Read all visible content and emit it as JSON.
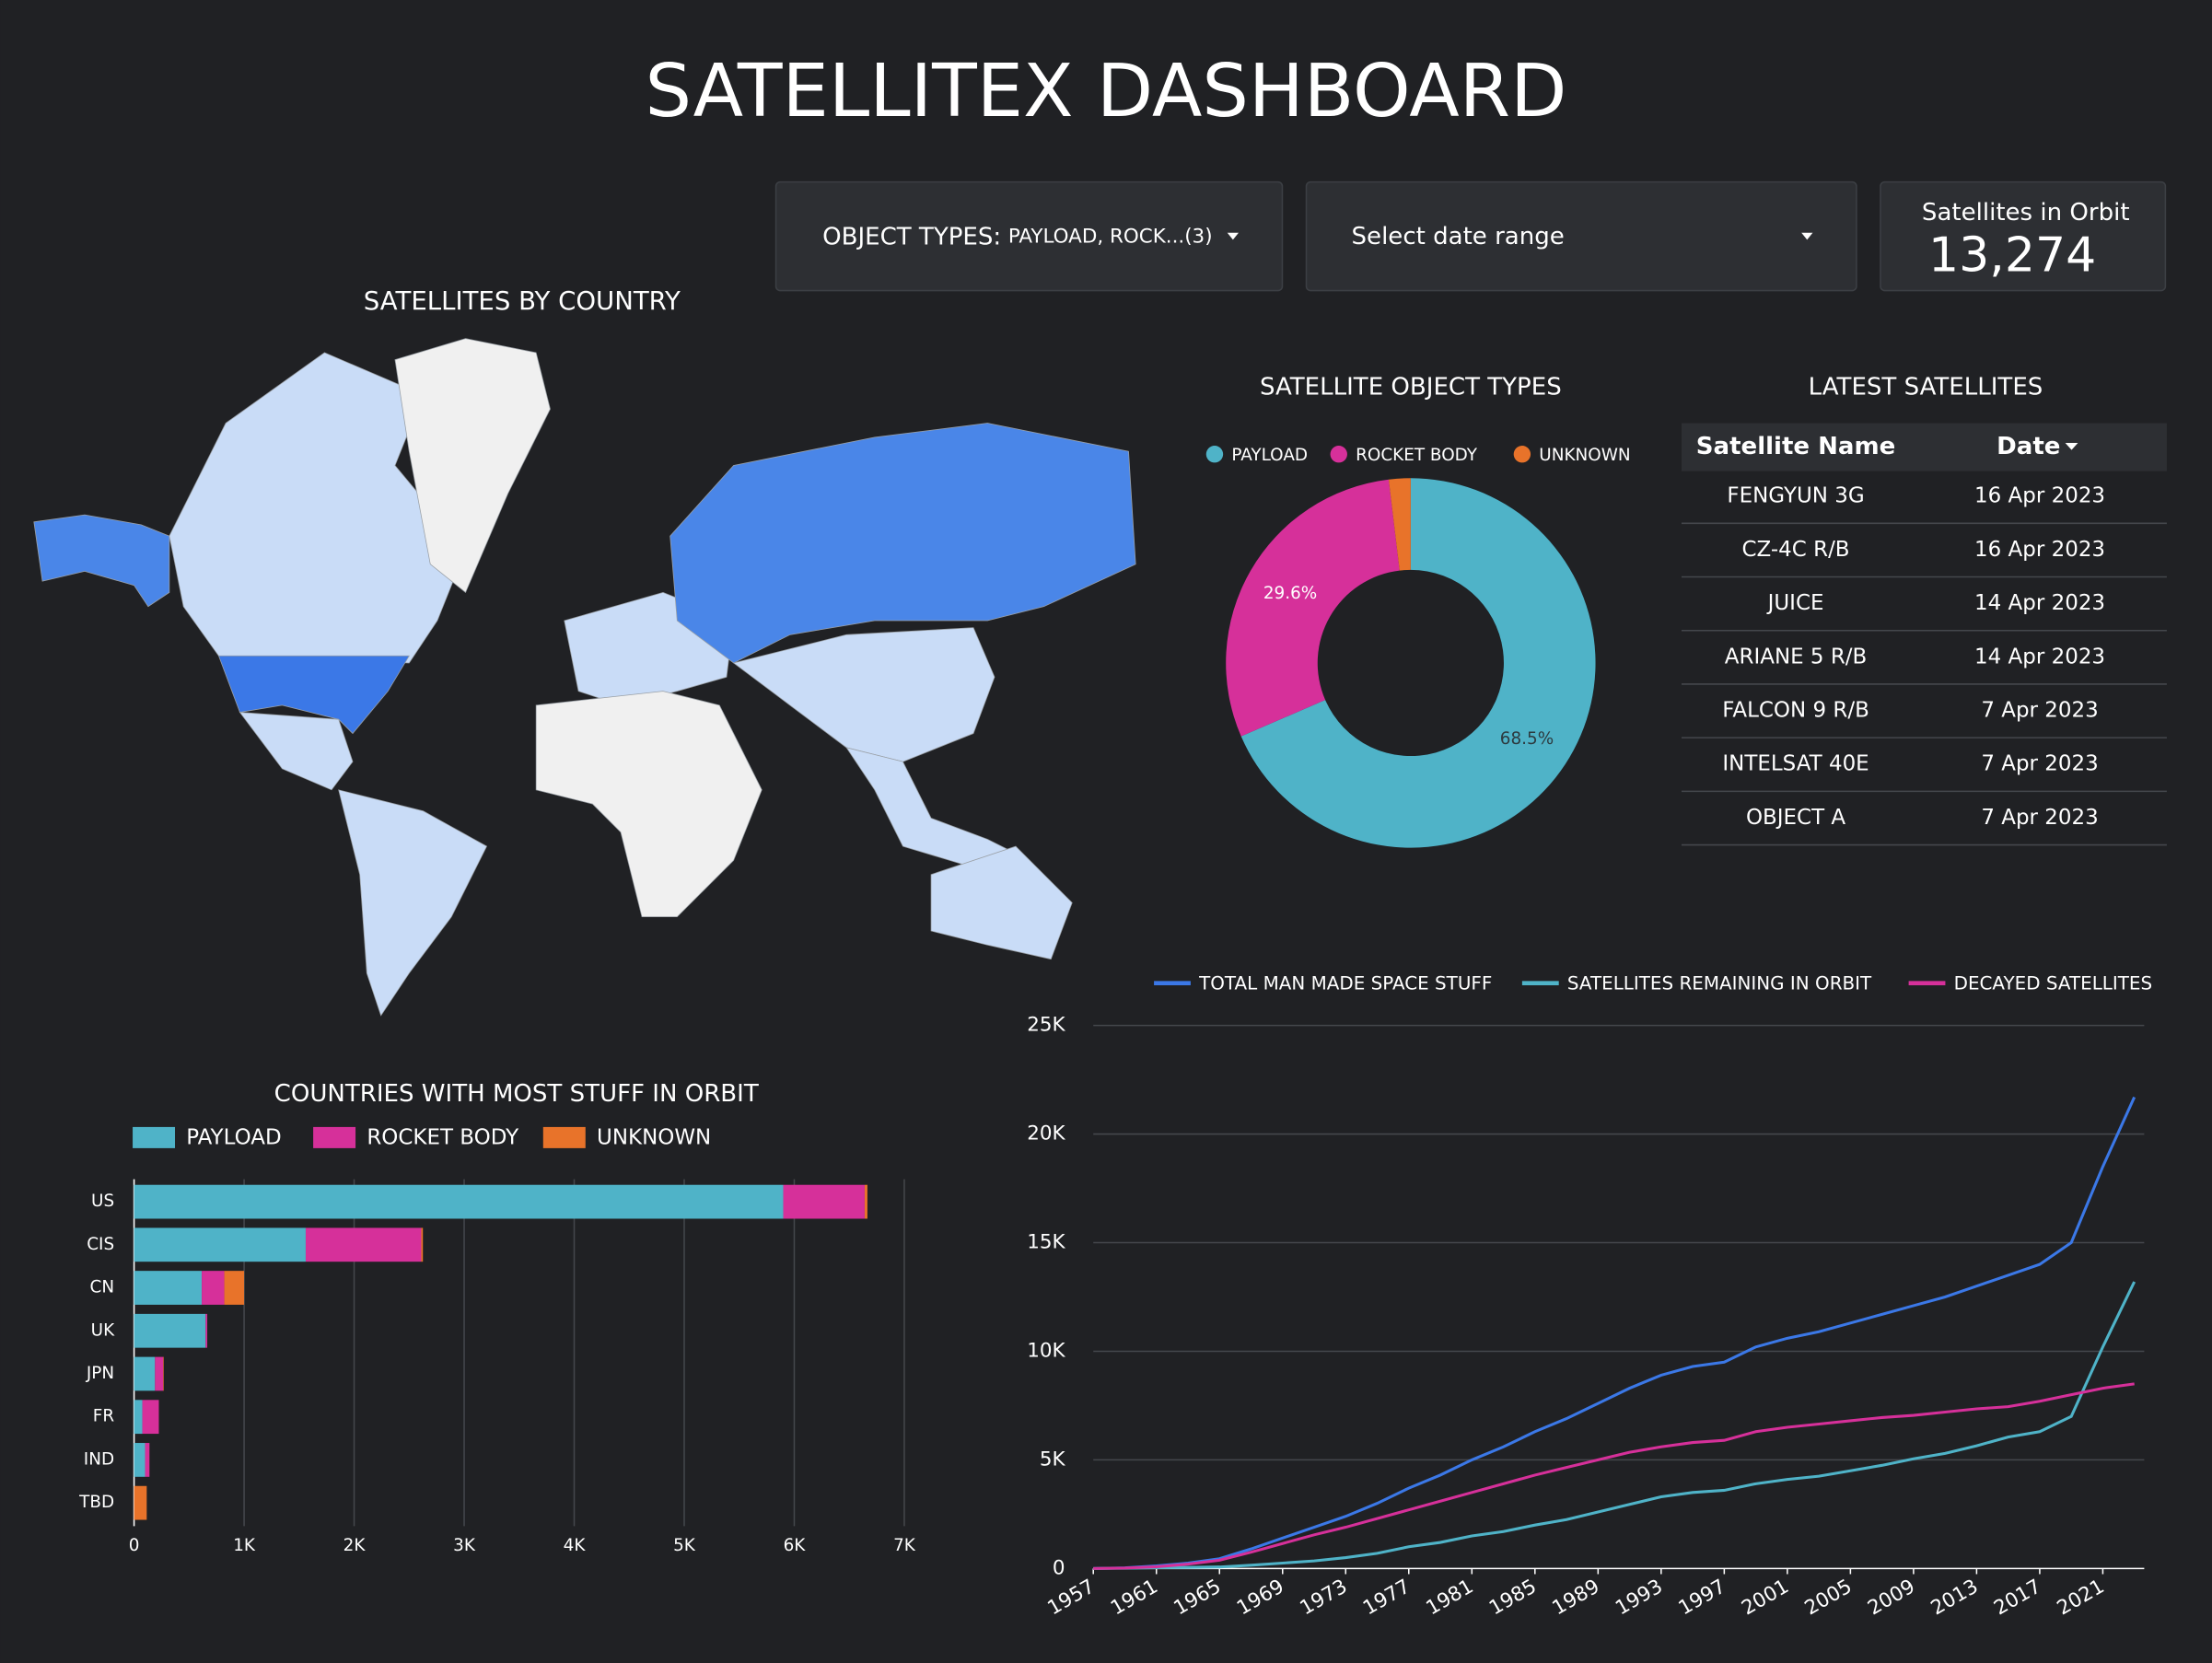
{
  "header": {
    "title": "SATELLITEX DASHBOARD"
  },
  "filters": {
    "object_types": {
      "label": "OBJECT TYPES:",
      "value": "PAYLOAD, ROCK...(3)"
    },
    "date_range": "Select date range"
  },
  "kpi": {
    "label": "Satellites in Orbit",
    "value": "13,274"
  },
  "map": {
    "title": "SATELLITES BY COUNTRY"
  },
  "table": {
    "title": "LATEST SATELLITES",
    "columns": [
      "Satellite Name",
      "Date"
    ],
    "rows": [
      [
        "FENGYUN 3G",
        "16 Apr 2023"
      ],
      [
        "CZ-4C R/B",
        "16 Apr 2023"
      ],
      [
        "JUICE",
        "14 Apr 2023"
      ],
      [
        "ARIANE 5 R/B",
        "14 Apr 2023"
      ],
      [
        "FALCON 9 R/B",
        "7 Apr 2023"
      ],
      [
        "INTELSAT 40E",
        "7 Apr 2023"
      ],
      [
        "OBJECT A",
        "7 Apr 2023"
      ]
    ]
  },
  "chart_data": [
    {
      "type": "pie",
      "title": "SATELLITE OBJECT TYPES",
      "donut": true,
      "categories": [
        "PAYLOAD",
        "ROCKET BODY",
        "UNKNOWN"
      ],
      "values": [
        68.5,
        29.6,
        1.9
      ],
      "value_labels": [
        "68.5%",
        "29.6%",
        null
      ],
      "colors": [
        "#4fb3c8",
        "#d6309a",
        "#e8732a"
      ]
    },
    {
      "type": "hbar",
      "title": "COUNTRIES WITH MOST STUFF IN ORBIT",
      "stacked": true,
      "grid": true,
      "categories": [
        "US",
        "CIS",
        "CN",
        "UK",
        "JPN",
        "FR",
        "IND",
        "TBD"
      ],
      "series": [
        {
          "name": "PAYLOAD",
          "color": "#4fb3c8",
          "values": [
            5900,
            1560,
            615,
            650,
            190,
            75,
            100,
            0
          ]
        },
        {
          "name": "ROCKET BODY",
          "color": "#d6309a",
          "values": [
            740,
            1050,
            205,
            15,
            75,
            150,
            40,
            0
          ]
        },
        {
          "name": "UNKNOWN",
          "color": "#e8732a",
          "values": [
            25,
            15,
            180,
            0,
            5,
            0,
            0,
            115
          ]
        }
      ],
      "xlim": [
        0,
        7000
      ],
      "xticks": [
        0,
        {
          "value": 1000,
          "label": "1K"
        },
        {
          "value": 2000,
          "label": "2K"
        },
        {
          "value": 3000,
          "label": "3K"
        },
        {
          "value": 4000,
          "label": "4K"
        },
        {
          "value": 5000,
          "label": "5K"
        },
        {
          "value": 6000,
          "label": "6K"
        },
        {
          "value": 7000,
          "label": "7K"
        }
      ]
    },
    {
      "type": "line",
      "grid": true,
      "x": [
        1957,
        1959,
        1961,
        1963,
        1965,
        1967,
        1969,
        1971,
        1973,
        1975,
        1977,
        1979,
        1981,
        1983,
        1985,
        1987,
        1989,
        1991,
        1993,
        1995,
        1997,
        1999,
        2001,
        2003,
        2005,
        2007,
        2009,
        2011,
        2013,
        2015,
        2017,
        2019,
        2021,
        2023
      ],
      "series": [
        {
          "name": "TOTAL MAN MADE SPACE STUFF",
          "color": "#3b78e7",
          "values": [
            0,
            30,
            120,
            250,
            450,
            900,
            1400,
            1900,
            2400,
            3000,
            3700,
            4300,
            5000,
            5600,
            6300,
            6900,
            7600,
            8300,
            8900,
            9300,
            9500,
            10200,
            10600,
            10900,
            11300,
            11700,
            12100,
            12500,
            13000,
            13500,
            14000,
            15000,
            18500,
            21700
          ]
        },
        {
          "name": "SATELLITES REMAINING IN ORBIT",
          "color": "#4fb3c8",
          "values": [
            0,
            10,
            40,
            50,
            70,
            150,
            250,
            350,
            500,
            700,
            1000,
            1200,
            1500,
            1700,
            2000,
            2250,
            2600,
            2950,
            3300,
            3500,
            3600,
            3900,
            4100,
            4250,
            4500,
            4750,
            5050,
            5300,
            5650,
            6050,
            6300,
            7000,
            10200,
            13200
          ]
        },
        {
          "name": "DECAYED SATELLITES",
          "color": "#d6309a",
          "values": [
            0,
            20,
            80,
            200,
            380,
            750,
            1150,
            1550,
            1900,
            2300,
            2700,
            3100,
            3500,
            3900,
            4300,
            4650,
            5000,
            5350,
            5600,
            5800,
            5900,
            6300,
            6500,
            6650,
            6800,
            6950,
            7050,
            7200,
            7350,
            7450,
            7700,
            8000,
            8300,
            8500
          ]
        }
      ],
      "xlim": [
        1957,
        2023
      ],
      "xticks": [
        1957,
        1961,
        1965,
        1969,
        1973,
        1977,
        1981,
        1985,
        1989,
        1993,
        1997,
        2001,
        2005,
        2009,
        2013,
        2017,
        2021
      ],
      "ylim": [
        0,
        25000
      ],
      "yticks": [
        0,
        {
          "value": 5000,
          "label": "5K"
        },
        {
          "value": 10000,
          "label": "10K"
        },
        {
          "value": 15000,
          "label": "15K"
        },
        {
          "value": 20000,
          "label": "20K"
        },
        {
          "value": 25000,
          "label": "25K"
        }
      ]
    }
  ]
}
